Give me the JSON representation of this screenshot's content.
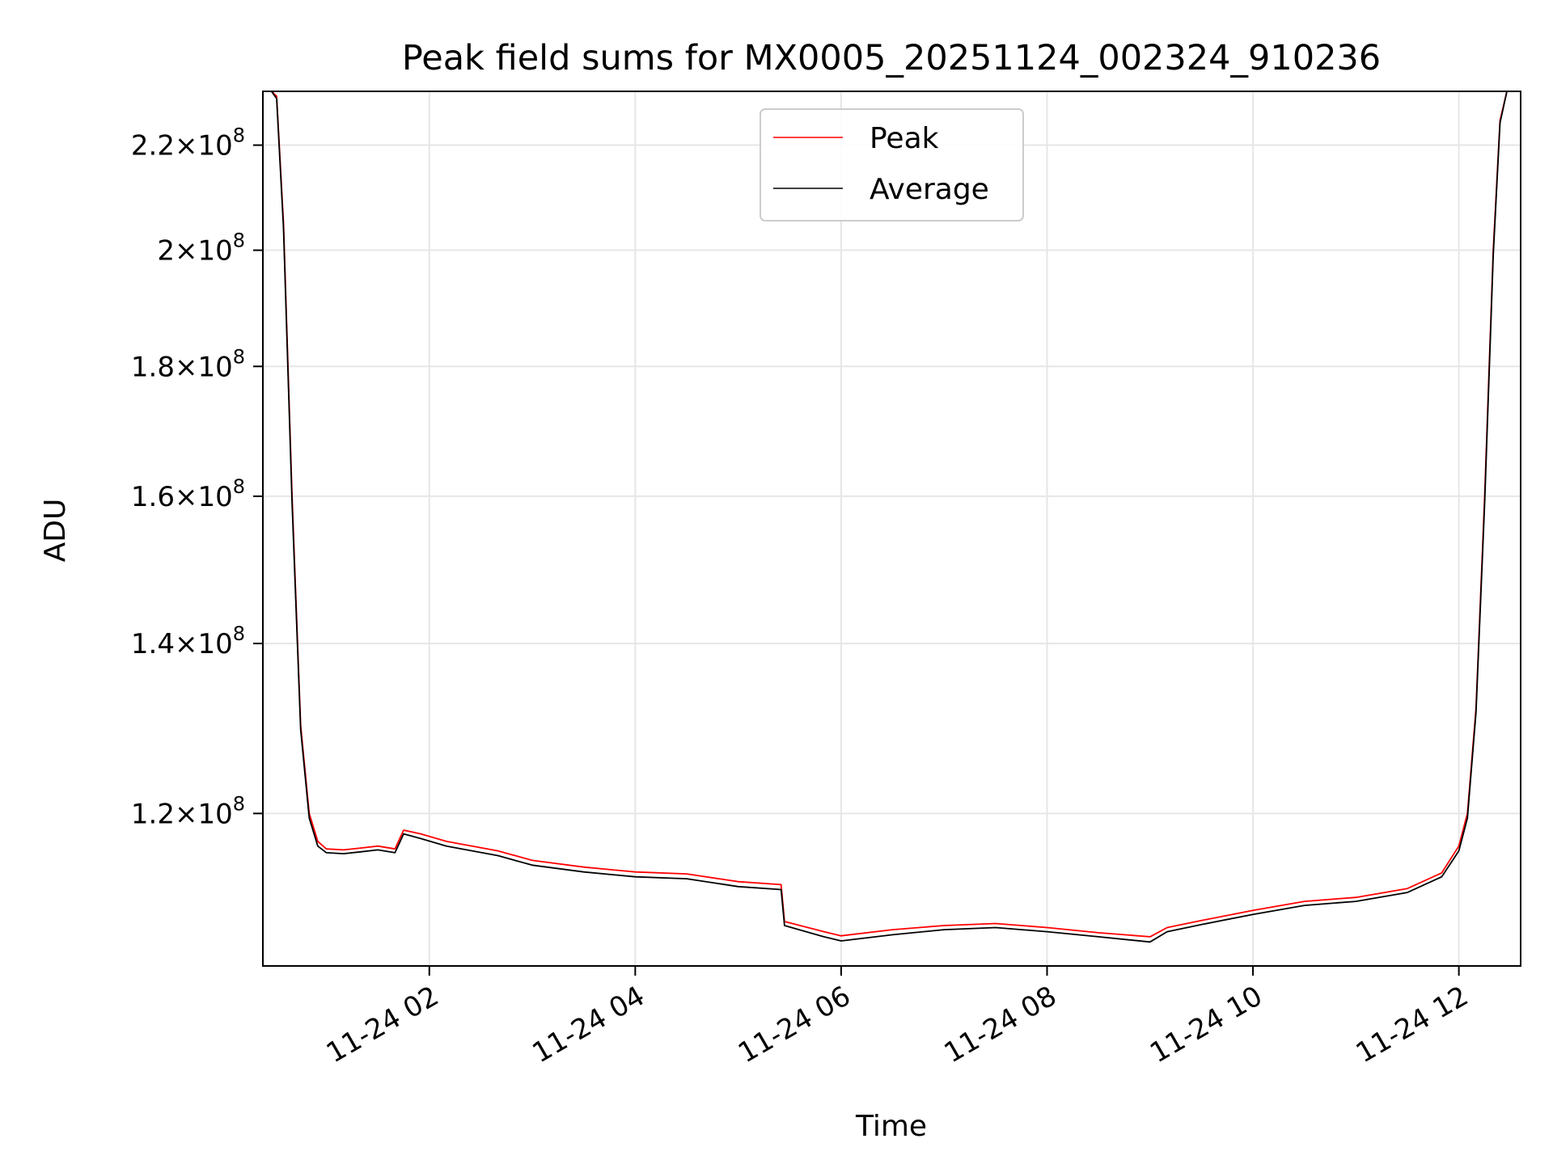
{
  "chart_data": {
    "type": "line",
    "title": "Peak field sums for MX0005_20251124_002324_910236",
    "xlabel": "Time",
    "ylabel": "ADU",
    "yscale": "log",
    "grid": true,
    "legend_placement": "upper-center",
    "xlim": [
      "2025-11-24 00:23",
      "2025-11-24 12:36"
    ],
    "ylim": [
      104500000,
      231000000
    ],
    "x_ticks": [
      {
        "value": "2025-11-24 02:00",
        "label": "11-24 02"
      },
      {
        "value": "2025-11-24 04:00",
        "label": "11-24 04"
      },
      {
        "value": "2025-11-24 06:00",
        "label": "11-24 06"
      },
      {
        "value": "2025-11-24 08:00",
        "label": "11-24 08"
      },
      {
        "value": "2025-11-24 10:00",
        "label": "11-24 10"
      },
      {
        "value": "2025-11-24 12:00",
        "label": "11-24 12"
      }
    ],
    "y_ticks": [
      {
        "value": 120000000,
        "mantissa": "1.2",
        "base": "10",
        "exp": "8"
      },
      {
        "value": 140000000,
        "mantissa": "1.4",
        "base": "10",
        "exp": "8"
      },
      {
        "value": 160000000,
        "mantissa": "1.6",
        "base": "10",
        "exp": "8"
      },
      {
        "value": 180000000,
        "mantissa": "1.8",
        "base": "10",
        "exp": "8"
      },
      {
        "value": 200000000,
        "mantissa": "2",
        "base": "10",
        "exp": "8"
      },
      {
        "value": 220000000,
        "mantissa": "2.2",
        "base": "10",
        "exp": "8"
      }
    ],
    "series": [
      {
        "name": "Peak",
        "color": "#ff0000",
        "x": [
          "2025-11-24 00:23",
          "2025-11-24 00:28",
          "2025-11-24 00:31",
          "2025-11-24 00:35",
          "2025-11-24 00:40",
          "2025-11-24 00:45",
          "2025-11-24 00:50",
          "2025-11-24 00:55",
          "2025-11-24 01:00",
          "2025-11-24 01:10",
          "2025-11-24 01:20",
          "2025-11-24 01:30",
          "2025-11-24 01:40",
          "2025-11-24 01:45",
          "2025-11-24 01:55",
          "2025-11-24 02:10",
          "2025-11-24 02:40",
          "2025-11-24 03:00",
          "2025-11-24 03:30",
          "2025-11-24 04:00",
          "2025-11-24 04:30",
          "2025-11-24 05:00",
          "2025-11-24 05:25",
          "2025-11-24 05:27",
          "2025-11-24 05:50",
          "2025-11-24 06:00",
          "2025-11-24 06:30",
          "2025-11-24 07:00",
          "2025-11-24 07:30",
          "2025-11-24 08:00",
          "2025-11-24 08:30",
          "2025-11-24 09:00",
          "2025-11-24 09:10",
          "2025-11-24 09:30",
          "2025-11-24 10:00",
          "2025-11-24 10:30",
          "2025-11-24 11:00",
          "2025-11-24 11:30",
          "2025-11-24 11:50",
          "2025-11-24 12:00",
          "2025-11-24 12:05",
          "2025-11-24 12:10",
          "2025-11-24 12:15",
          "2025-11-24 12:20",
          "2025-11-24 12:24",
          "2025-11-24 12:28",
          "2025-11-24 12:36"
        ],
        "y": [
          231000000,
          231000000,
          230000000,
          205000000,
          160000000,
          130000000,
          120000000,
          117000000,
          116200000,
          116100000,
          116300000,
          116500000,
          116200000,
          118200000,
          117800000,
          117000000,
          116000000,
          115000000,
          114300000,
          113800000,
          113600000,
          112800000,
          112500000,
          108800000,
          107800000,
          107400000,
          108000000,
          108400000,
          108600000,
          108200000,
          107700000,
          107300000,
          108200000,
          108900000,
          109900000,
          110800000,
          111200000,
          112100000,
          113700000,
          116500000,
          120000000,
          132000000,
          160000000,
          200000000,
          225000000,
          231000000,
          231000000
        ]
      },
      {
        "name": "Average",
        "color": "#000000",
        "x": [
          "2025-11-24 00:23",
          "2025-11-24 00:28",
          "2025-11-24 00:31",
          "2025-11-24 00:35",
          "2025-11-24 00:40",
          "2025-11-24 00:45",
          "2025-11-24 00:50",
          "2025-11-24 00:55",
          "2025-11-24 01:00",
          "2025-11-24 01:10",
          "2025-11-24 01:20",
          "2025-11-24 01:30",
          "2025-11-24 01:40",
          "2025-11-24 01:45",
          "2025-11-24 01:55",
          "2025-11-24 02:10",
          "2025-11-24 02:40",
          "2025-11-24 03:00",
          "2025-11-24 03:30",
          "2025-11-24 04:00",
          "2025-11-24 04:30",
          "2025-11-24 05:00",
          "2025-11-24 05:25",
          "2025-11-24 05:27",
          "2025-11-24 05:50",
          "2025-11-24 06:00",
          "2025-11-24 06:30",
          "2025-11-24 07:00",
          "2025-11-24 07:30",
          "2025-11-24 08:00",
          "2025-11-24 08:30",
          "2025-11-24 09:00",
          "2025-11-24 09:10",
          "2025-11-24 09:30",
          "2025-11-24 10:00",
          "2025-11-24 10:30",
          "2025-11-24 11:00",
          "2025-11-24 11:30",
          "2025-11-24 11:50",
          "2025-11-24 12:00",
          "2025-11-24 12:05",
          "2025-11-24 12:10",
          "2025-11-24 12:15",
          "2025-11-24 12:20",
          "2025-11-24 12:24",
          "2025-11-24 12:28",
          "2025-11-24 12:36"
        ],
        "y": [
          231000000,
          231000000,
          229500000,
          204000000,
          159000000,
          129500000,
          119500000,
          116500000,
          115800000,
          115700000,
          115900000,
          116100000,
          115800000,
          117800000,
          117300000,
          116500000,
          115500000,
          114500000,
          113800000,
          113300000,
          113100000,
          112300000,
          112000000,
          108400000,
          107300000,
          106900000,
          107500000,
          108000000,
          108200000,
          107800000,
          107300000,
          106800000,
          107800000,
          108500000,
          109500000,
          110400000,
          110800000,
          111700000,
          113300000,
          116000000,
          119500000,
          131500000,
          159000000,
          199000000,
          224500000,
          231000000,
          231000000
        ]
      }
    ]
  }
}
